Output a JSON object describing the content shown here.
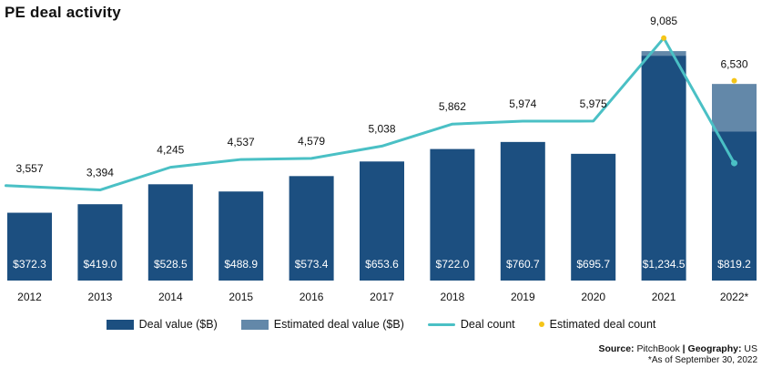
{
  "title": "PE deal activity",
  "colors": {
    "deal_value": "#1c4f80",
    "estimated_deal_value": "#6388a9",
    "deal_count": "#4ac0c5",
    "estimated_deal_count": "#f5c518",
    "bar_label": "#ffffff",
    "text": "#111111"
  },
  "legend": {
    "deal_value": "Deal value ($B)",
    "estimated_deal_value": "Estimated deal value ($B)",
    "deal_count": "Deal count",
    "estimated_deal_count": "Estimated deal count"
  },
  "source": {
    "label": "Source:",
    "value": "PitchBook",
    "geo_label": "Geography:",
    "geo_value": "US",
    "separator": "|",
    "note": "*As of September 30, 2022"
  },
  "chart_data": {
    "type": "bar",
    "title": "PE deal activity",
    "categories": [
      "2012",
      "2013",
      "2014",
      "2015",
      "2016",
      "2017",
      "2018",
      "2019",
      "2020",
      "2021",
      "2022*"
    ],
    "series": [
      {
        "name": "Deal value ($B)",
        "type": "bar",
        "values": [
          372.3,
          419.0,
          528.5,
          488.9,
          573.4,
          653.6,
          722.0,
          760.7,
          695.7,
          1234.5,
          819.2
        ],
        "labels": [
          "$372.3",
          "$419.0",
          "$528.5",
          "$488.9",
          "$573.4",
          "$653.6",
          "$722.0",
          "$760.7",
          "$695.7",
          "$1,234.5",
          "$819.2"
        ]
      },
      {
        "name": "Estimated deal value ($B)",
        "type": "bar-stacked",
        "values": [
          0,
          0,
          0,
          0,
          0,
          0,
          0,
          0,
          0,
          25,
          260
        ]
      },
      {
        "name": "Deal count",
        "type": "line",
        "values": [
          3557,
          3394,
          4245,
          4537,
          4579,
          5038,
          5862,
          5974,
          5975,
          9085,
          4400
        ],
        "labels": [
          "3,557",
          "3,394",
          "4,245",
          "4,537",
          "4,579",
          "5,038",
          "5,862",
          "5,974",
          "5,975",
          "9,085",
          ""
        ]
      },
      {
        "name": "Estimated deal count",
        "type": "scatter",
        "values": [
          null,
          null,
          null,
          null,
          null,
          null,
          null,
          null,
          null,
          9085,
          6530
        ],
        "labels": [
          "",
          "",
          "",
          "",
          "",
          "",
          "",
          "",
          "",
          "",
          "6,530"
        ]
      }
    ],
    "ylim_value": [
      0,
      1300
    ],
    "ylim_count": [
      0,
      10000
    ],
    "legend_position": "bottom",
    "grid": false
  }
}
